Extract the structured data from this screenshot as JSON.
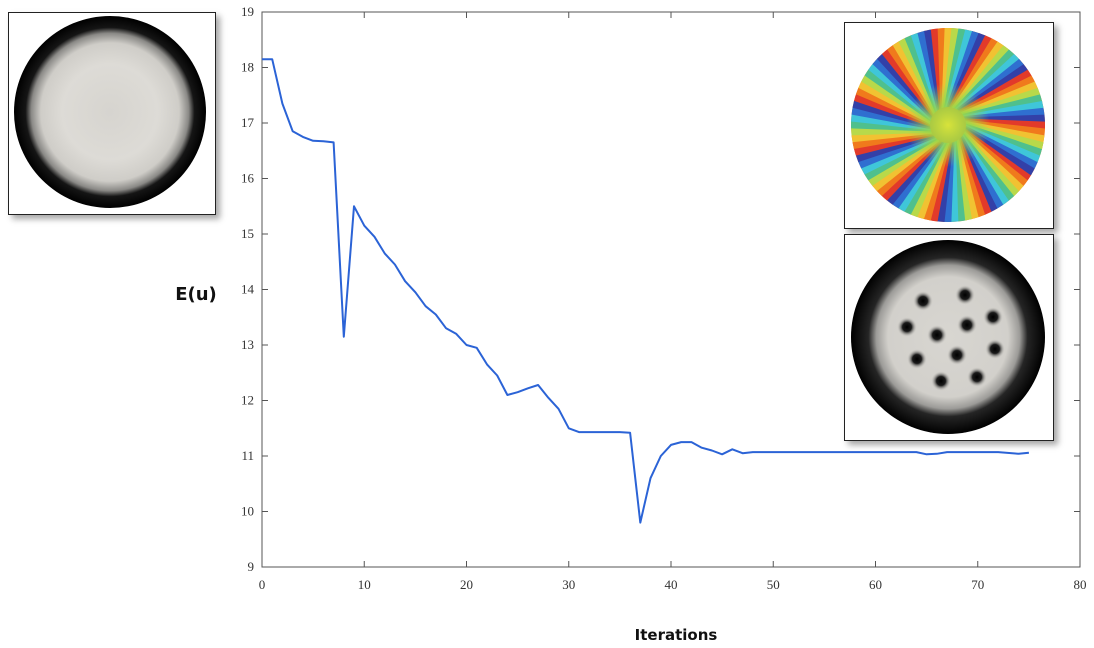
{
  "chart_data": {
    "type": "line",
    "title": "",
    "xlabel": "Iterations",
    "ylabel": "E(u)",
    "xlim": [
      0,
      80
    ],
    "ylim": [
      9,
      19
    ],
    "xticks": [
      "0",
      "10",
      "20",
      "30",
      "40",
      "50",
      "60",
      "70",
      "80"
    ],
    "yticks": [
      "9",
      "10",
      "11",
      "12",
      "13",
      "14",
      "15",
      "16",
      "17",
      "18",
      "19"
    ],
    "grid": false,
    "series": [
      {
        "color": "#2b63d6",
        "x": [
          0,
          1,
          2,
          3,
          4,
          5,
          6,
          7,
          8,
          9,
          10,
          11,
          12,
          13,
          14,
          15,
          16,
          17,
          18,
          19,
          20,
          21,
          22,
          23,
          24,
          25,
          26,
          27,
          28,
          29,
          30,
          31,
          32,
          33,
          34,
          35,
          36,
          37,
          38,
          39,
          40,
          41,
          42,
          43,
          44,
          45,
          46,
          47,
          48,
          50,
          55,
          60,
          63,
          64,
          65,
          66,
          67,
          68,
          70,
          72,
          74,
          75
        ],
        "y": [
          18.15,
          18.15,
          17.35,
          16.85,
          16.75,
          16.68,
          16.67,
          16.65,
          13.15,
          15.5,
          15.15,
          14.95,
          14.65,
          14.45,
          14.15,
          13.95,
          13.7,
          13.55,
          13.3,
          13.2,
          13.0,
          12.95,
          12.65,
          12.45,
          12.1,
          12.15,
          12.22,
          12.28,
          12.05,
          11.85,
          11.5,
          11.43,
          11.43,
          11.43,
          11.43,
          11.43,
          11.42,
          9.8,
          10.6,
          11.0,
          11.2,
          11.25,
          11.25,
          11.15,
          11.1,
          11.03,
          11.12,
          11.05,
          11.07,
          11.07,
          11.07,
          11.07,
          11.07,
          11.07,
          11.03,
          11.04,
          11.07,
          11.07,
          11.07,
          11.07,
          11.04,
          11.06
        ]
      }
    ]
  },
  "insets": {
    "initial_state_image": "grayscale-disk-uniform",
    "phase_image": "rainbow-phase-disk",
    "final_state_image": "grayscale-disk-vortices"
  },
  "colors": {
    "line": "#2b63d6",
    "axis": "#555555",
    "inset_border": "#222222"
  }
}
